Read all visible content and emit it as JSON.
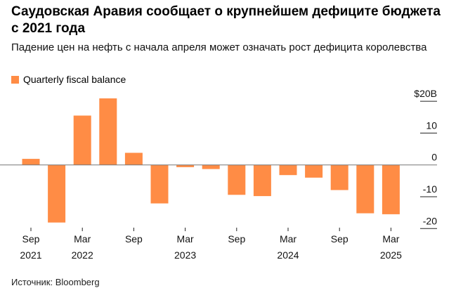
{
  "title": "Саудовская Аравия сообщает о крупнейшем дефиците бюджета с 2021 года",
  "subtitle": "Падение цен на нефть с начала апреля может означать рост дефицита королевства",
  "source": "Источник: Bloomberg",
  "chart_data": {
    "type": "bar",
    "title": "Саудовская Аравия сообщает о крупнейшем дефиците бюджета с 2021 года",
    "series": [
      {
        "name": "Quarterly fiscal balance",
        "color": "#FF8C45",
        "values": [
          1.9,
          -18.1,
          15.5,
          20.9,
          3.8,
          -12.1,
          -0.7,
          -1.3,
          -9.4,
          -9.8,
          -3.2,
          -4.0,
          -7.9,
          -15.2,
          -15.5
        ]
      }
    ],
    "categories": [
      "Q3 2021",
      "Q4 2021",
      "Q1 2022",
      "Q2 2022",
      "Q3 2022",
      "Q4 2022",
      "Q1 2023",
      "Q2 2023",
      "Q3 2023",
      "Q4 2023",
      "Q1 2024",
      "Q2 2024",
      "Q3 2024",
      "Q4 2024",
      "Q1 2025"
    ],
    "x_ticks": [
      {
        "index": 0,
        "month": "Sep",
        "year": "2021"
      },
      {
        "index": 2,
        "month": "Mar",
        "year": "2022"
      },
      {
        "index": 4,
        "month": "Sep",
        "year": ""
      },
      {
        "index": 6,
        "month": "Mar",
        "year": "2023"
      },
      {
        "index": 8,
        "month": "Sep",
        "year": ""
      },
      {
        "index": 10,
        "month": "Mar",
        "year": "2024"
      },
      {
        "index": 12,
        "month": "Sep",
        "year": ""
      },
      {
        "index": 14,
        "month": "Mar",
        "year": "2025"
      }
    ],
    "y_ticks": [
      {
        "value": 20,
        "label": "$20B"
      },
      {
        "value": 10,
        "label": "10"
      },
      {
        "value": 0,
        "label": "0"
      },
      {
        "value": -10,
        "label": "-10"
      },
      {
        "value": -20,
        "label": "-20"
      }
    ],
    "ylim": [
      -20,
      20
    ],
    "ylabel": "",
    "xlabel": "",
    "legend_position": "top-left"
  }
}
